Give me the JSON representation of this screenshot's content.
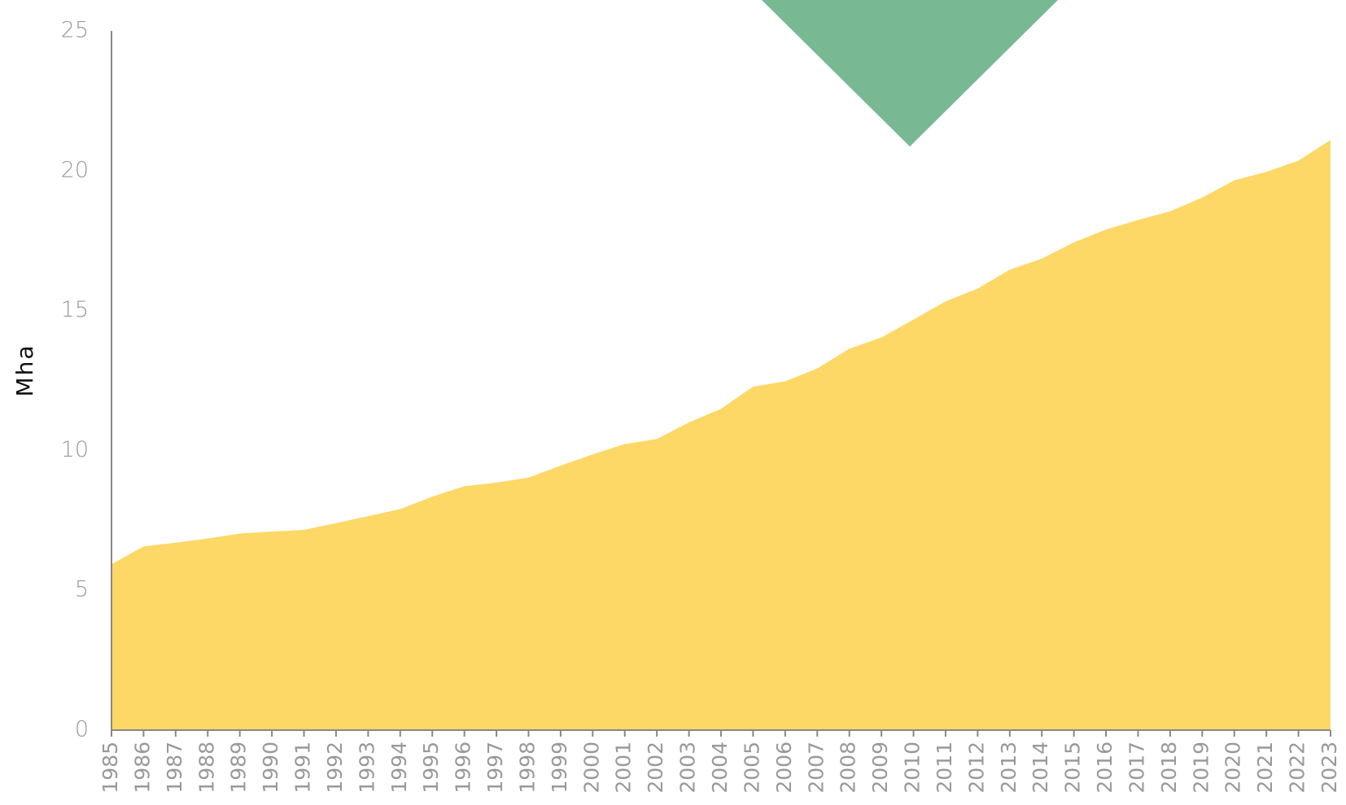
{
  "chart_data": {
    "type": "area",
    "y_label": "Mha",
    "x": [
      "1985",
      "1986",
      "1987",
      "1988",
      "1989",
      "1990",
      "1991",
      "1992",
      "1993",
      "1994",
      "1995",
      "1996",
      "1997",
      "1998",
      "1999",
      "2000",
      "2001",
      "2002",
      "2003",
      "2004",
      "2005",
      "2006",
      "2007",
      "2008",
      "2009",
      "2010",
      "2011",
      "2012",
      "2013",
      "2014",
      "2015",
      "2016",
      "2017",
      "2018",
      "2019",
      "2020",
      "2021",
      "2022",
      "2023"
    ],
    "values": [
      5.93,
      6.57,
      6.7,
      6.85,
      7.03,
      7.1,
      7.16,
      7.4,
      7.65,
      7.9,
      8.35,
      8.72,
      8.85,
      9.03,
      9.46,
      9.86,
      10.23,
      10.41,
      11.0,
      11.49,
      12.28,
      12.47,
      12.93,
      13.64,
      14.04,
      14.68,
      15.33,
      15.79,
      16.46,
      16.86,
      17.44,
      17.9,
      18.24,
      18.55,
      19.04,
      19.66,
      19.96,
      20.36,
      21.1
    ],
    "color": "#fdd866",
    "ylim": [
      0,
      25
    ],
    "yticks": [
      0,
      5,
      10,
      15,
      20,
      25
    ],
    "grid": false
  }
}
